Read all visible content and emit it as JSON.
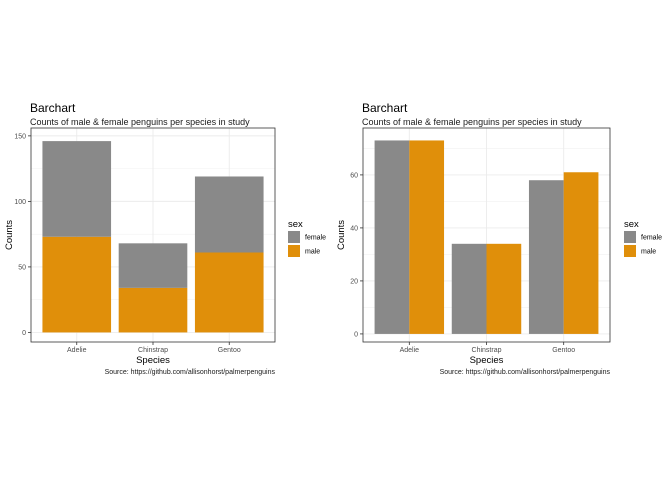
{
  "chart_data": [
    {
      "type": "bar",
      "stacked": true,
      "title": "Barchart",
      "subtitle": "Counts of male & female penguins per species in study",
      "xlabel": "Species",
      "ylabel": "Counts",
      "caption": "Source: https://github.com/allisonhorst/palmerpenguins",
      "categories": [
        "Adelie",
        "Chinstrap",
        "Gentoo"
      ],
      "series": [
        {
          "name": "female",
          "color": "#898989",
          "values": [
            73,
            34,
            58
          ]
        },
        {
          "name": "male",
          "color": "#E08F0A",
          "values": [
            73,
            34,
            61
          ]
        }
      ],
      "yticks": [
        0,
        50,
        100,
        150
      ],
      "ylim": [
        -7.3,
        156
      ],
      "grid": true,
      "legend": {
        "title": "sex",
        "position": "right"
      }
    },
    {
      "type": "bar",
      "stacked": false,
      "position": "dodge",
      "title": "Barchart",
      "subtitle": "Counts of male & female penguins per species in study",
      "xlabel": "Species",
      "ylabel": "Counts",
      "caption": "Source: https://github.com/allisonhorst/palmerpenguins",
      "categories": [
        "Adelie",
        "Chinstrap",
        "Gentoo"
      ],
      "series": [
        {
          "name": "female",
          "color": "#898989",
          "values": [
            73,
            34,
            58
          ]
        },
        {
          "name": "male",
          "color": "#E08F0A",
          "values": [
            73,
            34,
            61
          ]
        }
      ],
      "yticks": [
        0,
        20,
        40,
        60
      ],
      "ylim": [
        -3.05,
        77.7
      ],
      "grid": true,
      "legend": {
        "title": "sex",
        "position": "right"
      }
    }
  ]
}
